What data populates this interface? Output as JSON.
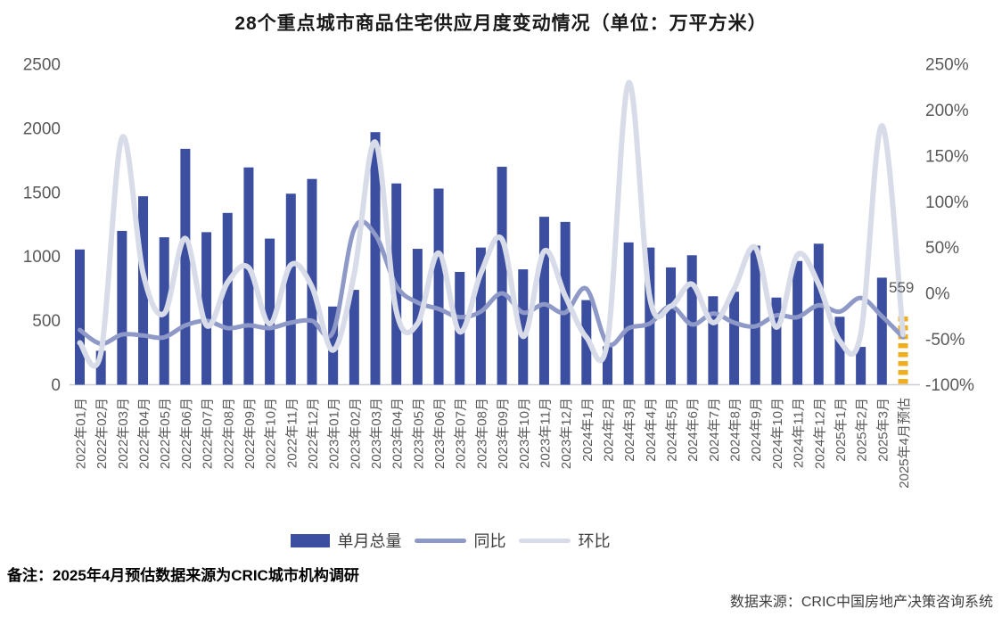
{
  "title": "28个重点城市商品住宅供应月度变动情况（单位：万平方米）",
  "footnote": "备注：2025年4月预估数据来源为CRIC城市机构调研",
  "source": "数据来源：CRIC中国房地产决策咨询系统",
  "colors": {
    "bar": "#3B4E9F",
    "bar_forecast": "#F0AD1E",
    "yoy_line": "#8E99C8",
    "mom_line": "#D8DCE9",
    "axis_text": "#595959",
    "axis_line": "#C9CDD4",
    "annotation_text": "#595959",
    "legend_text": "#3d3d3d"
  },
  "chart_data": {
    "type": "bar",
    "title": "28个重点城市商品住宅供应月度变动情况（单位：万平方米）",
    "xlabel": "",
    "ylabel_left": "万平方米",
    "ylabel_right": "%",
    "grid": false,
    "legend_position": "bottom",
    "left_axis": {
      "min": 0,
      "max": 2500,
      "ticks": [
        2500,
        2000,
        1500,
        1000,
        500,
        0
      ]
    },
    "right_axis": {
      "min": -100,
      "max": 250,
      "ticks": [
        250,
        200,
        150,
        100,
        50,
        0,
        -50,
        -100
      ],
      "tick_labels": [
        "250%",
        "200%",
        "150%",
        "100%",
        "50%",
        "0%",
        "-50%",
        "-100%"
      ]
    },
    "categories": [
      "2022年01月",
      "2022年02月",
      "2022年03月",
      "2022年04月",
      "2022年05月",
      "2022年06月",
      "2022年07月",
      "2022年08月",
      "2022年09月",
      "2022年10月",
      "2022年11月",
      "2022年12月",
      "2023年01月",
      "2023年02月",
      "2023年03月",
      "2023年04月",
      "2023年05月",
      "2023年06月",
      "2023年07月",
      "2023年08月",
      "2023年09月",
      "2023年10月",
      "2023年11月",
      "2023年12月",
      "2024年1月",
      "2024年2月",
      "2024年3月",
      "2024年4月",
      "2024年5月",
      "2024年6月",
      "2024年7月",
      "2024年8月",
      "2024年9月",
      "2024年10月",
      "2024年11月",
      "2024年12月",
      "2025年1月",
      "2025年2月",
      "2025年3月",
      "2025年4月预估"
    ],
    "series": [
      {
        "name": "单月总量",
        "type": "bar",
        "axis": "left",
        "values": [
          1055,
          265,
          1200,
          1470,
          1150,
          1840,
          1190,
          1340,
          1695,
          1140,
          1490,
          1605,
          610,
          740,
          1970,
          1570,
          1060,
          1530,
          880,
          1070,
          1700,
          900,
          1310,
          1270,
          660,
          300,
          1110,
          1070,
          915,
          1010,
          690,
          725,
          1085,
          680,
          965,
          1100,
          530,
          295,
          835,
          559
        ],
        "last_bar_is_forecast": true
      },
      {
        "name": "同比",
        "type": "line",
        "axis": "right",
        "values": [
          -40,
          -55,
          -45,
          -46,
          -48,
          -35,
          -30,
          -38,
          -35,
          -38,
          -32,
          -30,
          -42,
          70,
          64,
          8,
          -10,
          -17,
          -26,
          -20,
          0,
          -21,
          -12,
          -21,
          5,
          -55,
          -38,
          -33,
          -14,
          -34,
          -22,
          -32,
          -36,
          -24,
          -26,
          -13,
          -20,
          -5,
          -25,
          -48
        ]
      },
      {
        "name": "环比",
        "type": "line",
        "axis": "right",
        "values": [
          -54,
          -65,
          170,
          22,
          -22,
          60,
          -35,
          12,
          28,
          -33,
          31,
          7,
          -62,
          21,
          165,
          -20,
          -33,
          44,
          -42,
          22,
          59,
          -47,
          46,
          -3,
          -48,
          -52,
          230,
          -4,
          -14,
          10,
          -32,
          5,
          50,
          -37,
          42,
          10,
          -52,
          -44,
          183,
          -45
        ]
      }
    ],
    "annotation": {
      "text": "559",
      "value": 559,
      "category": "2025年4月预估",
      "series": "单月总量"
    }
  }
}
